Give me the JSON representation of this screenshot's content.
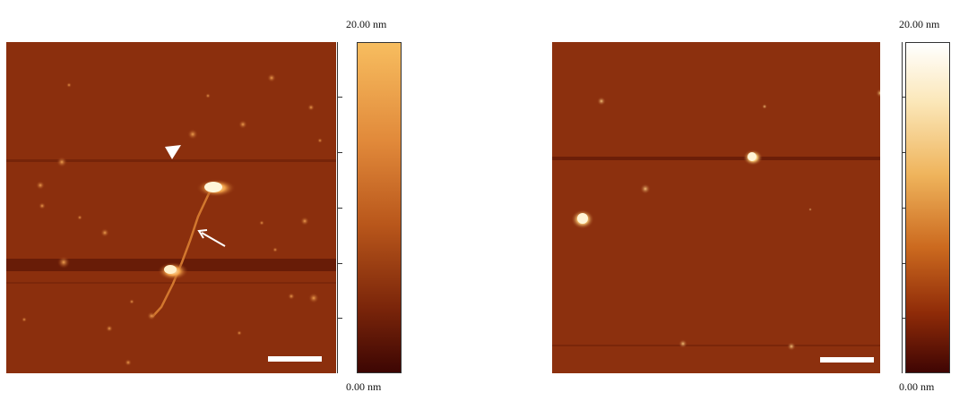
{
  "panels": {
    "left": {
      "colorbar_max": "20.00 nm",
      "colorbar_min": "0.00 nm",
      "colormap_top": "#f7bd5f",
      "colormap_bottom": "#3d0603",
      "background_color": "#8a2e0c"
    },
    "right": {
      "colorbar_max": "20.00 nm",
      "colorbar_min": "0.00 nm",
      "colormap_top": "#ffffff",
      "colormap_bottom": "#3f0503",
      "background_color": "#8a2e0c"
    }
  },
  "icons": {
    "arrowhead": "white-triangle-marker-icon",
    "arrow": "white-arrow-icon"
  }
}
